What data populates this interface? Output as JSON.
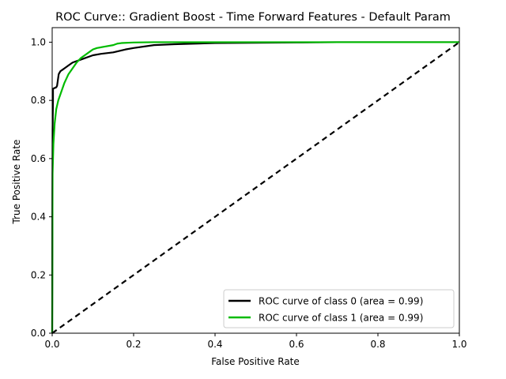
{
  "chart_data": {
    "type": "line",
    "title": "ROC Curve:: Gradient Boost - Time Forward Features - Default Param",
    "xlabel": "False Positive Rate",
    "ylabel": "True Positive Rate",
    "xlim": [
      0.0,
      1.0
    ],
    "ylim": [
      0.0,
      1.05
    ],
    "xticks": [
      "0.0",
      "0.2",
      "0.4",
      "0.6",
      "0.8",
      "1.0"
    ],
    "yticks": [
      "0.0",
      "0.2",
      "0.4",
      "0.6",
      "0.8",
      "1.0"
    ],
    "grid": false,
    "legend_position": "lower-right",
    "series": [
      {
        "name": "ROC curve of class 0 (area = 0.99)",
        "color": "#000000",
        "style": "solid",
        "x": [
          0.0,
          0.001,
          0.002,
          0.002,
          0.01,
          0.012,
          0.014,
          0.016,
          0.02,
          0.025,
          0.03,
          0.04,
          0.05,
          0.06,
          0.07,
          0.08,
          0.1,
          0.12,
          0.15,
          0.18,
          0.2,
          0.25,
          0.3,
          0.35,
          0.4,
          0.5,
          0.6,
          0.7,
          0.8,
          0.9,
          1.0
        ],
        "y": [
          0.0,
          0.7,
          0.8,
          0.84,
          0.845,
          0.85,
          0.87,
          0.89,
          0.9,
          0.905,
          0.91,
          0.92,
          0.93,
          0.935,
          0.94,
          0.945,
          0.955,
          0.96,
          0.965,
          0.975,
          0.98,
          0.99,
          0.993,
          0.995,
          0.997,
          0.998,
          0.999,
          1.0,
          1.0,
          1.0,
          1.0
        ]
      },
      {
        "name": "ROC curve of class 1 (area = 0.99)",
        "color": "#00bb00",
        "style": "solid",
        "x": [
          0.0,
          0.001,
          0.003,
          0.006,
          0.01,
          0.015,
          0.02,
          0.025,
          0.03,
          0.04,
          0.05,
          0.06,
          0.07,
          0.08,
          0.09,
          0.1,
          0.11,
          0.13,
          0.15,
          0.16,
          0.17,
          0.2,
          0.25,
          0.3,
          0.4,
          0.5,
          0.6,
          0.8,
          1.0
        ],
        "y": [
          0.0,
          0.55,
          0.65,
          0.72,
          0.77,
          0.8,
          0.82,
          0.84,
          0.86,
          0.89,
          0.91,
          0.93,
          0.945,
          0.955,
          0.965,
          0.975,
          0.98,
          0.985,
          0.99,
          0.995,
          0.997,
          0.999,
          1.0,
          1.0,
          1.0,
          1.0,
          1.0,
          1.0,
          1.0
        ]
      },
      {
        "name": "",
        "color": "#000000",
        "style": "dashed",
        "x": [
          0.0,
          1.0
        ],
        "y": [
          0.0,
          1.0
        ]
      }
    ]
  }
}
